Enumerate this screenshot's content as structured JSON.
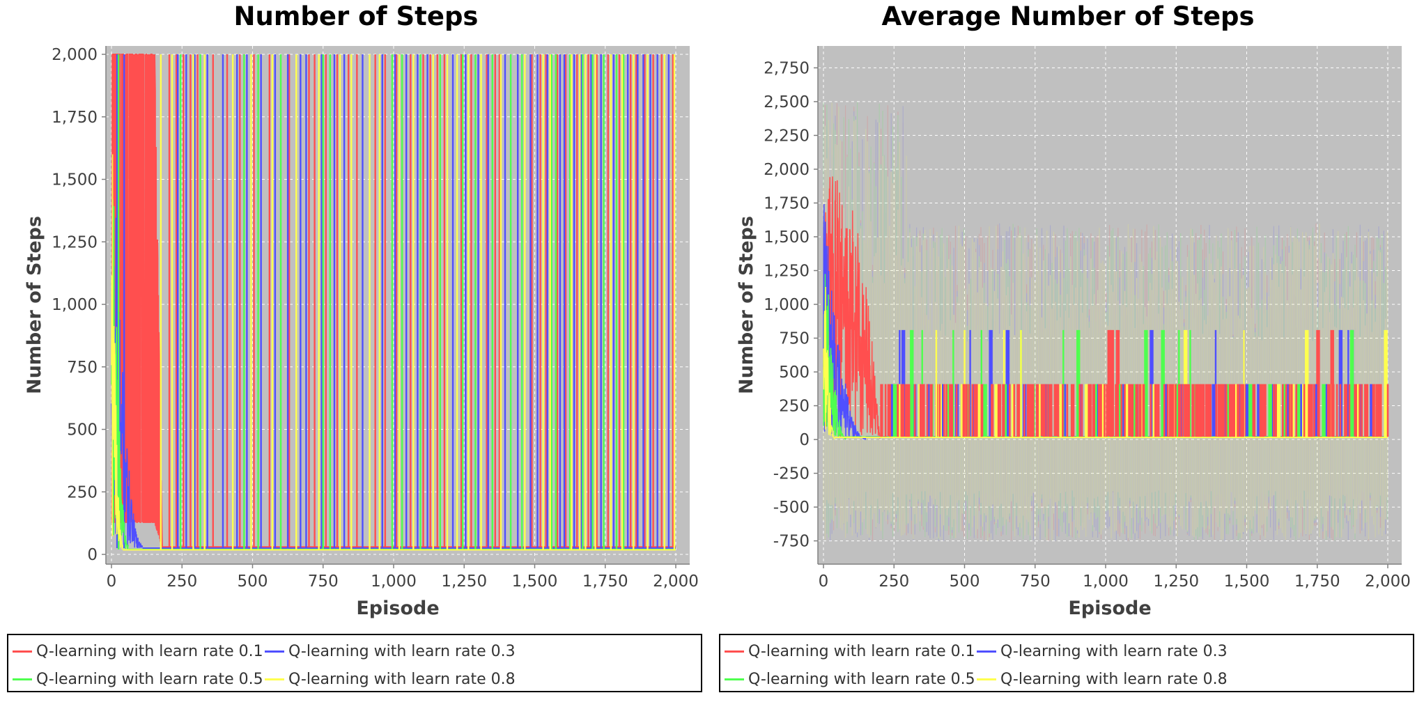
{
  "chart_data": [
    {
      "type": "line",
      "title": "Number of Steps",
      "xlabel": "Episode",
      "ylabel": "Number of Steps",
      "xlim": [
        0,
        2000
      ],
      "ylim": [
        0,
        2000
      ],
      "x_ticks": [
        "0",
        "250",
        "500",
        "750",
        "1,000",
        "1,250",
        "1,500",
        "1,750",
        "2,000"
      ],
      "y_ticks": [
        "0",
        "250",
        "500",
        "750",
        "1,000",
        "1,250",
        "1,500",
        "1,750",
        "2,000"
      ],
      "x_tick_values": [
        0,
        250,
        500,
        750,
        1000,
        1250,
        1500,
        1750,
        2000
      ],
      "y_tick_values": [
        0,
        250,
        500,
        750,
        1000,
        1250,
        1500,
        1750,
        2000
      ],
      "grid": true,
      "legend": "bottom",
      "series": [
        {
          "name": "Q-learning with learn rate 0.1",
          "color": "#ff4f4f",
          "convergence_episode": 180,
          "baseline": 30,
          "spike_value": 2000,
          "spike_episodes": [
            205,
            230,
            255,
            280,
            305,
            360,
            410,
            455,
            505,
            560,
            630,
            700,
            720,
            760,
            800,
            840,
            870,
            935,
            970,
            1010,
            1060,
            1105,
            1130,
            1155,
            1180,
            1240,
            1275,
            1330,
            1360,
            1375,
            1440,
            1490,
            1520,
            1540,
            1580,
            1610,
            1650,
            1690,
            1720,
            1760,
            1800,
            1840,
            1860,
            1890,
            1920,
            1950,
            1990
          ]
        },
        {
          "name": "Q-learning with learn rate 0.3",
          "color": "#4f4fff",
          "convergence_episode": 110,
          "baseline": 25,
          "spike_value": 2000,
          "spike_episodes": [
            20,
            45,
            235,
            265,
            295,
            340,
            395,
            445,
            480,
            530,
            580,
            625,
            670,
            690,
            745,
            790,
            825,
            890,
            960,
            1005,
            1045,
            1085,
            1120,
            1210,
            1255,
            1300,
            1335,
            1395,
            1440,
            1485,
            1510,
            1545,
            1590,
            1605,
            1640,
            1665,
            1700,
            1735,
            1780,
            1830,
            1865,
            1885,
            1910,
            1935,
            1975
          ]
        },
        {
          "name": "Q-learning with learn rate 0.5",
          "color": "#4fff4f",
          "convergence_episode": 60,
          "baseline": 20,
          "spike_value": 2000,
          "spike_episodes": [
            25,
            245,
            315,
            470,
            520,
            600,
            750,
            775,
            995,
            1030,
            1095,
            1165,
            1245,
            1290,
            1350,
            1415,
            1455,
            1560,
            1575,
            1625,
            1670,
            1705,
            1745,
            1790,
            1815
          ]
        },
        {
          "name": "Q-learning with learn rate 0.8",
          "color": "#ffff4f",
          "convergence_episode": 40,
          "baseline": 18,
          "spike_value": 2000,
          "spike_episodes": [
            175,
            215,
            290,
            330,
            430,
            495,
            570,
            655,
            735,
            810,
            850,
            915,
            950,
            1020,
            1070,
            1140,
            1190,
            1225,
            1265,
            1310,
            1380,
            1465,
            1530,
            1555,
            1630,
            1660,
            1680,
            1715,
            1770,
            1810,
            1850,
            1900,
            1960,
            1995
          ]
        }
      ]
    },
    {
      "type": "line",
      "title": "Average Number of Steps",
      "xlabel": "Episode",
      "ylabel": "Number of Steps",
      "xlim": [
        0,
        2000
      ],
      "ylim": [
        -850,
        2850
      ],
      "x_ticks": [
        "0",
        "250",
        "500",
        "750",
        "1,000",
        "1,250",
        "1,500",
        "1,750",
        "2,000"
      ],
      "y_ticks": [
        "-750",
        "-500",
        "-250",
        "0",
        "250",
        "500",
        "750",
        "1,000",
        "1,250",
        "1,500",
        "1,750",
        "2,000",
        "2,250",
        "2,500",
        "2,750"
      ],
      "x_tick_values": [
        0,
        250,
        500,
        750,
        1000,
        1250,
        1500,
        1750,
        2000
      ],
      "y_tick_values": [
        -750,
        -500,
        -250,
        0,
        250,
        500,
        750,
        1000,
        1250,
        1500,
        1750,
        2000,
        2250,
        2500,
        2750
      ],
      "grid": true,
      "legend": "bottom",
      "error_band_low": -750,
      "error_band_high": 2500,
      "series": [
        {
          "name": "Q-learning with learn rate 0.1",
          "color": "#ff4f4f",
          "convergence_episode": 200,
          "baseline": 20,
          "spike_value": 410,
          "peak_value": 810,
          "spike_episodes": [
            230,
            260,
            300,
            350,
            400,
            450,
            500,
            560,
            620,
            690,
            730,
            770,
            820,
            880,
            940,
            980,
            1010,
            1020,
            1040,
            1080,
            1130,
            1180,
            1230,
            1290,
            1340,
            1400,
            1450,
            1490,
            1520,
            1560,
            1600,
            1650,
            1700,
            1750,
            1800,
            1850,
            1880,
            1920,
            1960,
            1990
          ],
          "peak_episodes": [
            1010,
            1020,
            1040,
            1750,
            1800
          ]
        },
        {
          "name": "Q-learning with learn rate 0.3",
          "color": "#4f4fff",
          "convergence_episode": 150,
          "baseline": 20,
          "spike_value": 410,
          "peak_value": 810,
          "spike_episodes": [
            240,
            280,
            320,
            370,
            420,
            470,
            530,
            590,
            650,
            710,
            790,
            850,
            910,
            970,
            1060,
            1110,
            1160,
            1210,
            1270,
            1320,
            1380,
            1420,
            1470,
            1500,
            1540,
            1590,
            1640,
            1690,
            1740,
            1780,
            1830,
            1870,
            1900,
            1940
          ],
          "peak_episodes": [
            270,
            280,
            520,
            590,
            650,
            1160,
            1390,
            1490,
            1830,
            1860,
            1870
          ]
        },
        {
          "name": "Q-learning with learn rate 0.5",
          "color": "#4fff4f",
          "convergence_episode": 80,
          "baseline": 18,
          "spike_value": 410,
          "peak_value": 810,
          "spike_episodes": [
            250,
            310,
            380,
            440,
            510,
            570,
            640,
            740,
            800,
            900,
            960,
            1050,
            1100,
            1140,
            1200,
            1250,
            1310,
            1360,
            1430,
            1510,
            1580,
            1630,
            1680,
            1720,
            1770,
            1870
          ],
          "peak_episodes": [
            310,
            350,
            460,
            560,
            700,
            850,
            900,
            1140,
            1200,
            1260,
            1300,
            1870
          ]
        },
        {
          "name": "Q-learning with learn rate 0.8",
          "color": "#ffff4f",
          "convergence_episode": 40,
          "baseline": 16,
          "spike_value": 410,
          "peak_value": 810,
          "spike_episodes": [
            270,
            340,
            410,
            490,
            550,
            610,
            670,
            760,
            840,
            930,
            990,
            1070,
            1120,
            1170,
            1240,
            1280,
            1330,
            1410,
            1460,
            1550,
            1610,
            1660,
            1700,
            1710,
            1790,
            1890,
            1990
          ],
          "peak_episodes": [
            400,
            500,
            640,
            700,
            1280,
            1490,
            1710,
            1990
          ]
        }
      ]
    }
  ]
}
